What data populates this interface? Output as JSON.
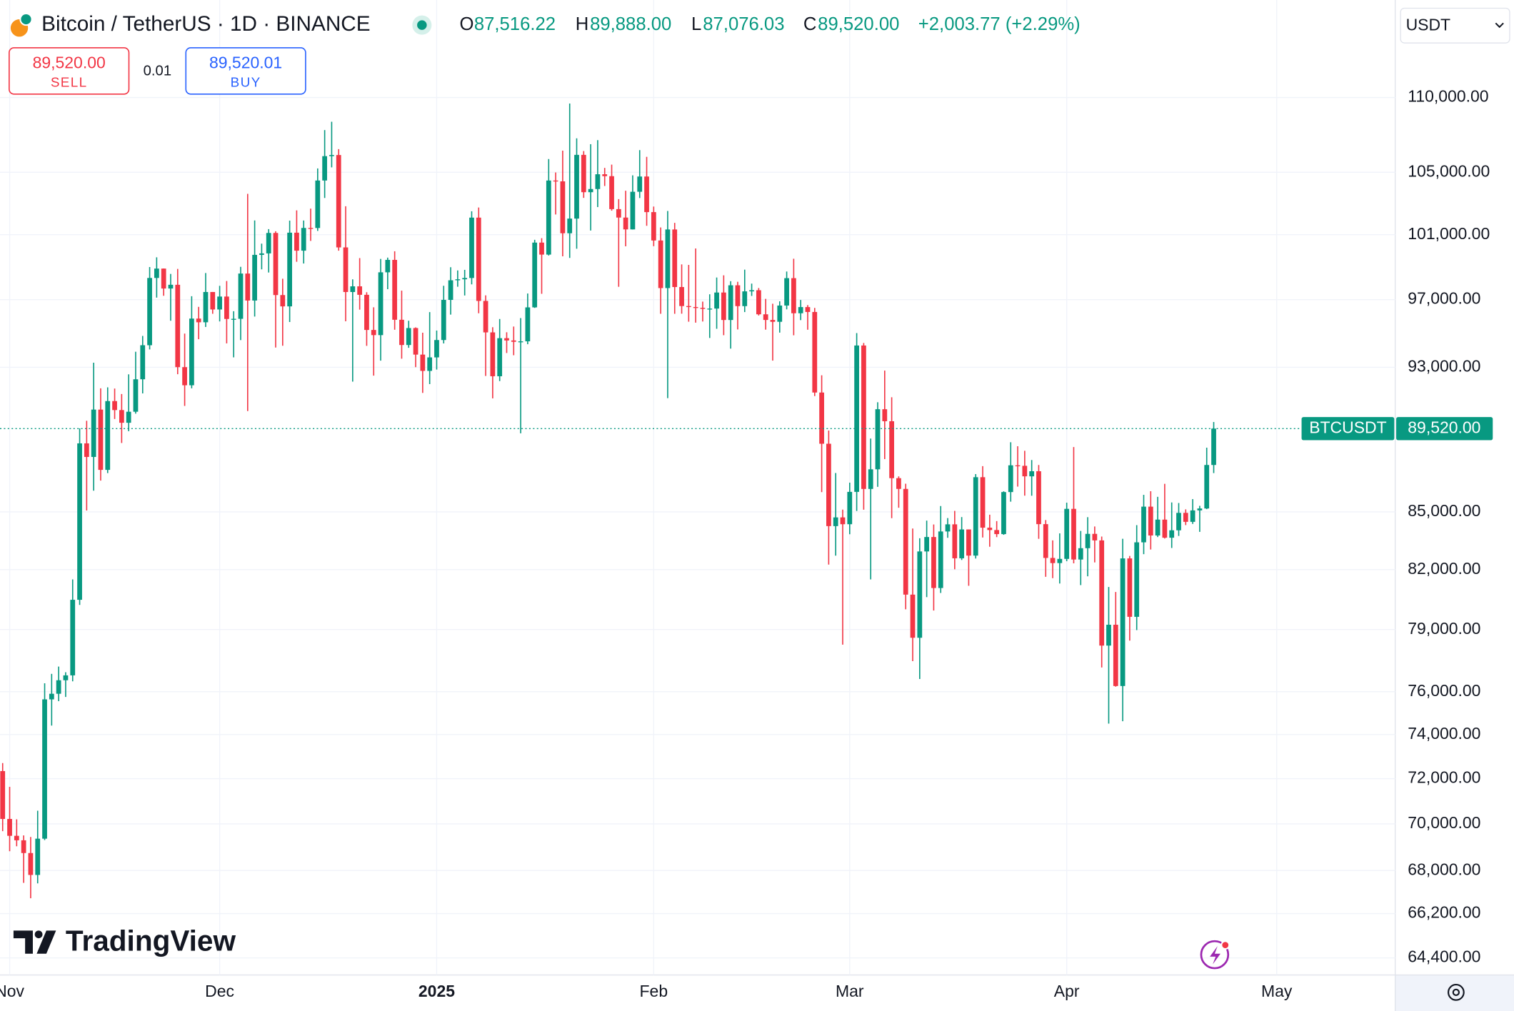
{
  "header": {
    "title": "Bitcoin / TetherUS · 1D · BINANCE",
    "ohlc": [
      {
        "letter": "O",
        "value": "87,516.22"
      },
      {
        "letter": "H",
        "value": "89,888.00"
      },
      {
        "letter": "L",
        "value": "87,076.03"
      },
      {
        "letter": "C",
        "value": "89,520.00"
      }
    ],
    "change": "+2,003.77 (+2.29%)"
  },
  "trade": {
    "sell_price": "89,520.00",
    "sell": "SELL",
    "spread": "0.01",
    "buy_price": "89,520.01",
    "buy": "BUY"
  },
  "currency": "USDT",
  "brand": "TradingView",
  "chart_data": {
    "type": "candlestick",
    "log_scale": true,
    "grid": true,
    "up_color": "#089981",
    "down_color": "#f23645",
    "symbol": "BTCUSDT",
    "last_price": {
      "value": 89520,
      "label": "89,520.00"
    },
    "xlim": [
      -0.38,
      198.93
    ],
    "xticks": [
      {
        "value": 1,
        "label": "Nov"
      },
      {
        "value": 31,
        "label": "Dec"
      },
      {
        "value": 62,
        "label": "2025"
      },
      {
        "value": 93,
        "label": "Feb"
      },
      {
        "value": 121,
        "label": "Mar"
      },
      {
        "value": 152,
        "label": "Apr"
      },
      {
        "value": 182,
        "label": "May"
      }
    ],
    "ylim": [
      63720,
      116880
    ],
    "yticks": [
      {
        "value": 110000,
        "label": "110,000.00"
      },
      {
        "value": 105000,
        "label": "105,000.00"
      },
      {
        "value": 101000,
        "label": "101,000.00"
      },
      {
        "value": 97000,
        "label": "97,000.00"
      },
      {
        "value": 93000,
        "label": "93,000.00"
      },
      {
        "value": 85000,
        "label": "85,000.00"
      },
      {
        "value": 82000,
        "label": "82,000.00"
      },
      {
        "value": 79000,
        "label": "79,000.00"
      },
      {
        "value": 76000,
        "label": "76,000.00"
      },
      {
        "value": 74000,
        "label": "74,000.00"
      },
      {
        "value": 72000,
        "label": "72,000.00"
      },
      {
        "value": 70000,
        "label": "70,000.00"
      },
      {
        "value": 68000,
        "label": "68,000.00"
      },
      {
        "value": 66200,
        "label": "66,200.00"
      },
      {
        "value": 64400,
        "label": "64,400.00"
      }
    ],
    "open": [
      72339,
      70216,
      69482,
      69289,
      68742,
      67811,
      69359,
      75640,
      75904,
      76545,
      76778,
      80474,
      88701,
      87955,
      90585,
      87250,
      91066,
      90558,
      89845,
      90464,
      92310,
      94286,
      98317,
      98892,
      97673,
      97900,
      93010,
      91966,
      95863,
      95643,
      97461,
      96407,
      97185,
      95840,
      95849,
      98587,
      96945,
      99740,
      99831,
      101109,
      97276,
      96593,
      101126,
      100000,
      101424,
      101420,
      104463,
      106058,
      106133,
      100204,
      97461,
      97805,
      97291,
      95186,
      94881,
      98663,
      99429,
      95792,
      94299,
      95300,
      93738,
      92792,
      93576,
      94591,
      96984,
      98174,
      98236,
      98314,
      102078,
      96922,
      95043,
      92484,
      94701,
      94566,
      94488,
      94516,
      96534,
      100504,
      99756,
      104462,
      104408,
      101089,
      102016,
      106143,
      103706,
      103910,
      104870,
      104746,
      102620,
      102082,
      101332,
      103733,
      104722,
      102429,
      100635,
      97700,
      101328,
      97763,
      96612,
      96554,
      96506,
      96444,
      96462,
      97430,
      95778,
      97869,
      96608,
      97500,
      97569,
      96118,
      95780,
      95671,
      96644,
      98305,
      96181,
      96551,
      96258,
      91552,
      88680,
      84250,
      84708,
      84349,
      86064,
      94270,
      86221,
      87281,
      90606,
      89931,
      86801,
      86222,
      80734,
      78595,
      82932,
      83680,
      81066,
      83969,
      84343,
      82579,
      84075,
      82718,
      86854,
      84167,
      84043,
      83832,
      86054,
      87498,
      87471,
      86900,
      87177,
      84353,
      82597,
      82334,
      82548,
      85159,
      82516,
      83100,
      83844,
      83504,
      78214,
      79235,
      76271,
      82573,
      79626,
      83404,
      85276,
      83760,
      84591,
      83643,
      84030,
      84947,
      84474,
      85077,
      85179,
      87516.22
    ],
    "high": [
      72700,
      71632,
      70200,
      69500,
      69433,
      70577,
      76400,
      76849,
      77199,
      76927,
      81500,
      89530,
      89956,
      93265,
      91790,
      91850,
      91779,
      91467,
      92594,
      93905,
      94831,
      98988,
      99588,
      98900,
      98564,
      98871,
      94973,
      97208,
      96564,
      98619,
      97463,
      97836,
      98130,
      96305,
      99000,
      103600,
      101898,
      100439,
      101350,
      101215,
      98270,
      101888,
      102540,
      101895,
      102650,
      105250,
      107793,
      108353,
      106524,
      102800,
      98233,
      99540,
      97448,
      96538,
      99487,
      99569,
      99963,
      97544,
      95733,
      95340,
      95024,
      96250,
      95151,
      97839,
      98976,
      98778,
      98814,
      102482,
      102724,
      97258,
      95349,
      95837,
      95050,
      95389,
      95893,
      97371,
      100681,
      100781,
      105865,
      104988,
      106422,
      109588,
      107240,
      106394,
      106850,
      107120,
      105286,
      105500,
      103260,
      103800,
      104800,
      106457,
      106012,
      102783,
      101456,
      102500,
      101745,
      99149,
      99120,
      100137,
      96880,
      97323,
      98345,
      98478,
      98119,
      98083,
      98826,
      97972,
      97704,
      97046,
      96753,
      96899,
      98711,
      99500,
      96980,
      96670,
      96500,
      92540,
      89414,
      87078,
      85120,
      86558,
      95000,
      94416,
      88967,
      91000,
      92810,
      91283,
      86897,
      86500,
      84123,
      83617,
      84539,
      84336,
      85309,
      84672,
      85051,
      84725,
      84075,
      87021,
      87453,
      84850,
      84513,
      86094,
      88765,
      88542,
      88292,
      87786,
      87515,
      84567,
      83505,
      83870,
      85487,
      88500,
      83998,
      84720,
      84230,
      83704,
      81119,
      80867,
      83588,
      82700,
      84300,
      85905,
      86100,
      85799,
      86496,
      85500,
      85470,
      85132,
      85677,
      85320,
      88465,
      89888
    ],
    "low": [
      69685,
      68820,
      69032,
      67478,
      66835,
      67458,
      69298,
      74416,
      75555,
      75753,
      76492,
      80216,
      85072,
      86127,
      86668,
      87073,
      90056,
      88722,
      89376,
      90357,
      91500,
      94040,
      97122,
      97232,
      95734,
      92600,
      90791,
      91792,
      94640,
      95364,
      96150,
      95693,
      94395,
      93578,
      94587,
      90500,
      95981,
      98844,
      98651,
      94150,
      94256,
      95658,
      99311,
      99205,
      100609,
      101237,
      103333,
      105321,
      100000,
      95700,
      92175,
      96398,
      94250,
      92520,
      93385,
      97632,
      95199,
      93500,
      94135,
      93009,
      91530,
      92033,
      92870,
      94392,
      96100,
      97781,
      97250,
      97926,
      96181,
      92500,
      91220,
      92206,
      93831,
      93700,
      89256,
      94346,
      96500,
      97352,
      99700,
      102277,
      99651,
      99550,
      100119,
      103339,
      101262,
      102750,
      104106,
      102520,
      97777,
      100272,
      101328,
      103328,
      101560,
      100279,
      96150,
      91231,
      96150,
      96155,
      95676,
      95620,
      95688,
      94713,
      95256,
      94876,
      94088,
      95217,
      96252,
      97223,
      96046,
      95205,
      93388,
      95029,
      96415,
      94871,
      95770,
      95200,
      91349,
      86050,
      82256,
      82716,
      78258,
      83824,
      85050,
      85117,
      81500,
      86334,
      87836,
      84667,
      85218,
      80000,
      77459,
      76606,
      80607,
      79939,
      80818,
      83639,
      82017,
      82492,
      81179,
      82569,
      83655,
      83175,
      83674,
      83794,
      85541,
      86346,
      85861,
      85858,
      83585,
      81634,
      81565,
      81293,
      82429,
      82320,
      81211,
      81659,
      82368,
      77153,
      74508,
      76239,
      74620,
      78456,
      78971,
      82792,
      83034,
      83678,
      83600,
      83111,
      83736,
      84303,
      84364,
      83949,
      85144,
      87076.03
    ],
    "close": [
      70215,
      69482,
      69289,
      68742,
      67811,
      69359,
      75640,
      75904,
      76545,
      76778,
      80474,
      88701,
      87955,
      90585,
      87250,
      91066,
      90558,
      89845,
      90464,
      92310,
      94286,
      98317,
      98892,
      97673,
      97901,
      93010,
      91966,
      95863,
      95643,
      97461,
      96407,
      97185,
      95840,
      95849,
      98587,
      96945,
      99740,
      99831,
      101109,
      97276,
      96593,
      101126,
      100000,
      101424,
      101420,
      104463,
      106058,
      106133,
      100204,
      97461,
      97805,
      97291,
      95186,
      94881,
      98663,
      99429,
      95792,
      94299,
      95300,
      93738,
      92792,
      93576,
      94591,
      96984,
      98174,
      98236,
      98314,
      102078,
      96922,
      95043,
      92484,
      94701,
      94566,
      94488,
      94516,
      96534,
      100504,
      99756,
      104462,
      104408,
      101089,
      102016,
      106143,
      103706,
      103910,
      104870,
      104746,
      102620,
      102082,
      101332,
      103733,
      104722,
      102429,
      100635,
      97700,
      101328,
      97763,
      96612,
      96554,
      96506,
      96444,
      96462,
      97430,
      95778,
      97869,
      96608,
      97500,
      97569,
      96118,
      95780,
      95671,
      96644,
      98305,
      96181,
      96551,
      96258,
      91552,
      88680,
      84250,
      84708,
      84349,
      86064,
      94270,
      86220,
      87281,
      90606,
      89931,
      86801,
      86222,
      80734,
      78595,
      82932,
      83680,
      81066,
      83969,
      84343,
      82579,
      84075,
      82718,
      86854,
      84167,
      84043,
      83832,
      86054,
      87498,
      87471,
      86900,
      87177,
      84353,
      82597,
      82334,
      82548,
      85159,
      82516,
      83100,
      83844,
      83504,
      78214,
      79235,
      76271,
      82573,
      79626,
      83404,
      85276,
      83760,
      84591,
      83643,
      84030,
      84947,
      84474,
      85077,
      85179,
      87516,
      89520
    ]
  }
}
